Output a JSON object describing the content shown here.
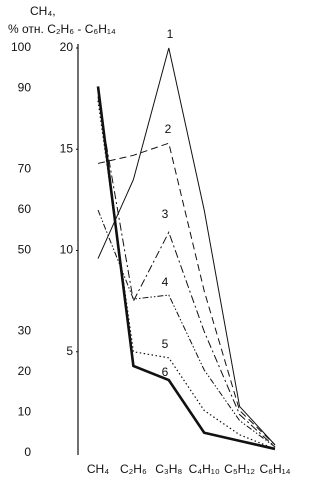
{
  "chart_data": {
    "type": "line",
    "title": "CH₄,",
    "subtitle": "% отн. C₂H₆ - C₆H₁₄",
    "categories": [
      "CH₄",
      "C₂H₆",
      "C₃H₈",
      "C₄H₁₀",
      "C₅H₁₂",
      "C₆H₁₄"
    ],
    "ylim": [
      0,
      100
    ],
    "yticks": [
      0,
      10,
      20,
      30,
      50,
      60,
      70,
      90,
      100
    ],
    "y2lim": [
      0,
      20
    ],
    "y2ticks": [
      5,
      10,
      15,
      20
    ],
    "color": "#111111",
    "series": [
      {
        "name": "1",
        "axis": "y2",
        "dash": "none",
        "width": 1,
        "values": [
          9.6,
          13.5,
          20,
          12,
          2.3,
          0.4
        ]
      },
      {
        "name": "2",
        "axis": "y2",
        "dash": "7 4",
        "width": 1,
        "values": [
          14.3,
          14.7,
          15.3,
          8,
          2.1,
          0.4
        ]
      },
      {
        "name": "3",
        "axis": "y2",
        "dash": "8 3 2 3",
        "width": 1,
        "values": [
          17.6,
          7.5,
          10.9,
          6,
          1.9,
          0.3
        ]
      },
      {
        "name": "4",
        "axis": "y2",
        "dash": "6 2 1.5 2 1.5 2",
        "width": 1,
        "values": [
          12,
          7.6,
          7.8,
          4.1,
          1.6,
          0.3
        ]
      },
      {
        "name": "5",
        "axis": "y2",
        "dash": "1.5 2.5",
        "width": 1.2,
        "values": [
          17.4,
          5,
          4.7,
          2.1,
          0.9,
          0.2
        ]
      },
      {
        "name": "6",
        "axis": "y2",
        "dash": "none",
        "width": 2.6,
        "values": [
          18.1,
          4.3,
          3.6,
          1,
          0.6,
          0.2
        ]
      }
    ]
  }
}
